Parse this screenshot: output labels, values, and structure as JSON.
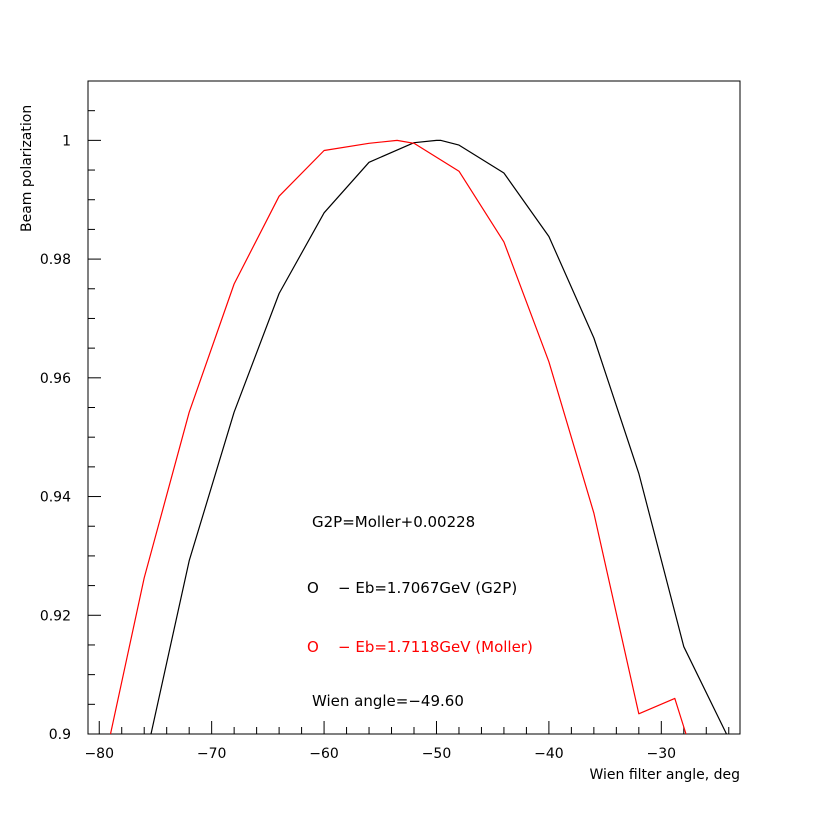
{
  "chart_data": {
    "type": "line",
    "xlabel": "Wien filter angle, deg",
    "ylabel": "Beam polarization",
    "xlim": [
      -81,
      -23
    ],
    "ylim": [
      0.9,
      1.01
    ],
    "x_ticks": [
      -80,
      -70,
      -60,
      -50,
      -40,
      -30
    ],
    "x_tick_labels": [
      "−80",
      "−70",
      "−60",
      "−50",
      "−40",
      "−30"
    ],
    "y_ticks": [
      0.9,
      0.92,
      0.94,
      0.96,
      0.98,
      1.0
    ],
    "y_tick_labels": [
      "0.9",
      "0.92",
      "0.94",
      "0.96",
      "0.98",
      "1"
    ],
    "grid": false,
    "series": [
      {
        "name": "G2P",
        "color": "#000000",
        "x": [
          -75.4,
          -72,
          -68,
          -64,
          -60,
          -56,
          -52,
          -50,
          -49.6,
          -48,
          -44,
          -40,
          -36,
          -32,
          -28,
          -24.2
        ],
        "y": [
          0.9,
          0.9292,
          0.9542,
          0.9742,
          0.9878,
          0.9963,
          0.9996,
          0.99999,
          1.0,
          0.9992,
          0.9945,
          0.9838,
          0.9667,
          0.9439,
          0.9147,
          0.9
        ]
      },
      {
        "name": "Moller",
        "color": "#ff0000",
        "x": [
          -79,
          -76,
          -72,
          -68,
          -64,
          -60,
          -56,
          -53.5,
          -52,
          -48,
          -44,
          -40,
          -36,
          -32,
          -28.8,
          -27.8
        ],
        "y": [
          0.9,
          0.9263,
          0.9542,
          0.9758,
          0.9906,
          0.9983,
          0.9995,
          1.0,
          0.9995,
          0.9948,
          0.9829,
          0.9627,
          0.9372,
          0.9034,
          0.906,
          0.9
        ]
      }
    ],
    "annotations": {
      "offset_text": "G2P=Moller+0.00228",
      "legend_g2p_marker": "O",
      "legend_g2p_text": "− Eb=1.7067GeV (G2P)",
      "legend_moller_marker": "O",
      "legend_moller_text": "− Eb=1.7118GeV (Moller)",
      "wien_angle_text": "Wien angle=−49.60"
    },
    "colors": {
      "g2p": "#000000",
      "moller": "#ff0000"
    }
  }
}
